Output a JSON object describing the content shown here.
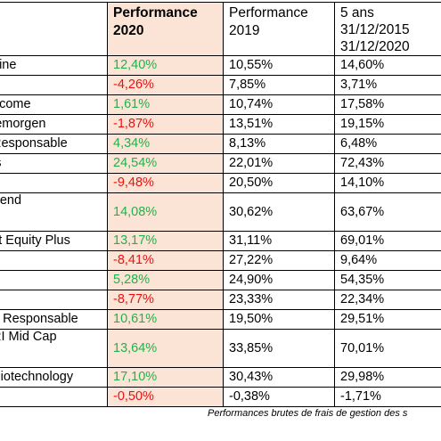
{
  "header": {
    "col2020": [
      "Performance",
      "2020"
    ],
    "col2019": [
      "Performance",
      "2019"
    ],
    "col5y": [
      "5 ans",
      "31/12/2015",
      "31/12/2020"
    ]
  },
  "rows": [
    {
      "name": "pine",
      "p2020": "12,40%",
      "sign": "pos",
      "p2019": "10,55%",
      "p5y": "14,60%"
    },
    {
      "name": "",
      "p2020": "-4,26%",
      "sign": "neg",
      "p2019": "7,85%",
      "p5y": "3,71%"
    },
    {
      "name": "ncome",
      "p2020": "1,61%",
      "sign": "pos",
      "p2019": "10,74%",
      "p5y": "17,58%"
    },
    {
      "name": "lemorgen",
      "p2020": "-1,87%",
      "sign": "neg",
      "p2019": "13,51%",
      "p5y": "19,15%"
    },
    {
      "name": "Responsable",
      "p2020": "4,34%",
      "sign": "pos",
      "p2019": "8,13%",
      "p5y": "6,48%"
    },
    {
      "name": "ls",
      "p2020": "24,54%",
      "sign": "pos",
      "p2019": "22,01%",
      "p5y": "72,43%"
    },
    {
      "name": "e",
      "p2020": "-9,48%",
      "sign": "neg",
      "p2019": "20,50%",
      "p5y": "14,10%"
    },
    {
      "name": "trend",
      "p2020": "14,08%",
      "sign": "pos",
      "p2019": "30,62%",
      "p5y": "63,67%",
      "tall": true
    },
    {
      "name": "ct Equity Plus",
      "p2020": "13,17%",
      "sign": "pos",
      "p2019": "31,11%",
      "p5y": "69,01%"
    },
    {
      "name": "",
      "p2020": "-8,41%",
      "sign": "neg",
      "p2019": "27,22%",
      "p5y": "9,64%"
    },
    {
      "name": "",
      "p2020": "5,28%",
      "sign": "pos",
      "p2019": "24,90%",
      "p5y": "54,35%"
    },
    {
      "name": "",
      "p2020": "-8,77%",
      "sign": "neg",
      "p2019": "23,33%",
      "p5y": "22,34%"
    },
    {
      "name": "n Responsable",
      "p2020": "10,61%",
      "sign": "pos",
      "p2019": "19,50%",
      "p5y": "29,51%"
    },
    {
      "name": "RI Mid Cap",
      "p2020": "13,64%",
      "sign": "pos",
      "p2019": "33,85%",
      "p5y": "70,01%",
      "tall": true
    },
    {
      "name": "Biotechnology",
      "p2020": "17,10%",
      "sign": "pos",
      "p2019": "30,43%",
      "p5y": "29,98%"
    },
    {
      "name": "",
      "p2020": "-0,50%",
      "sign": "neg",
      "p2019": "-0,38%",
      "p5y": "-1,71%"
    }
  ],
  "footnote": "Performances brutes de frais de gestion des s",
  "colors": {
    "positive": "#22b14c",
    "negative": "#ee1111",
    "highlight": "#fbe4d5"
  }
}
